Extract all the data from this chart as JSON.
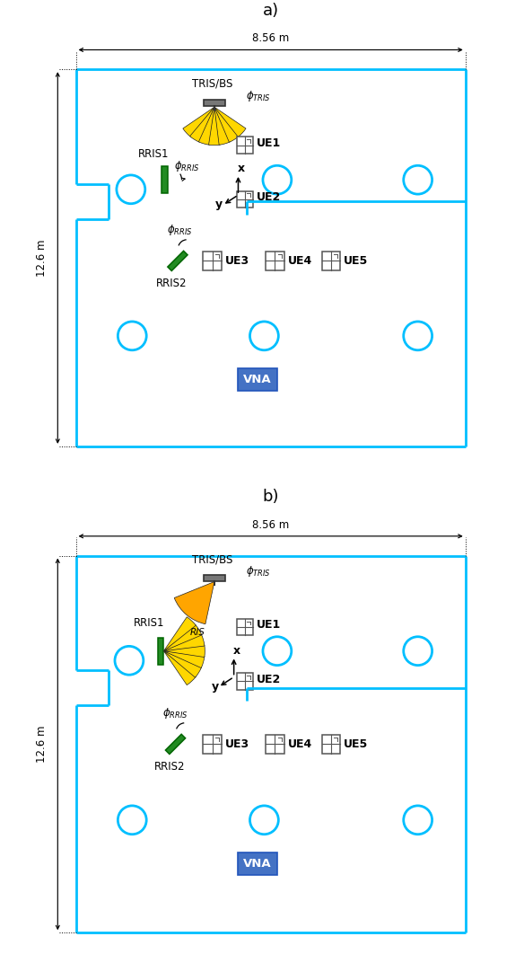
{
  "fig_width": 5.84,
  "fig_height": 10.72,
  "room_color": "#00BFFF",
  "lw": 2.0,
  "panel_a_label": "a)",
  "panel_b_label": "b)",
  "dim_horiz": "8.56 m",
  "dim_vert": "12.6 m",
  "yellow": "#FFD700",
  "orange": "#FFA500",
  "green_face": "#228B22",
  "green_edge": "#006400",
  "gray_ant": "#888888",
  "gray_ue": "#888888",
  "vna_face": "#4472C4",
  "vna_edge": "#2255BB"
}
